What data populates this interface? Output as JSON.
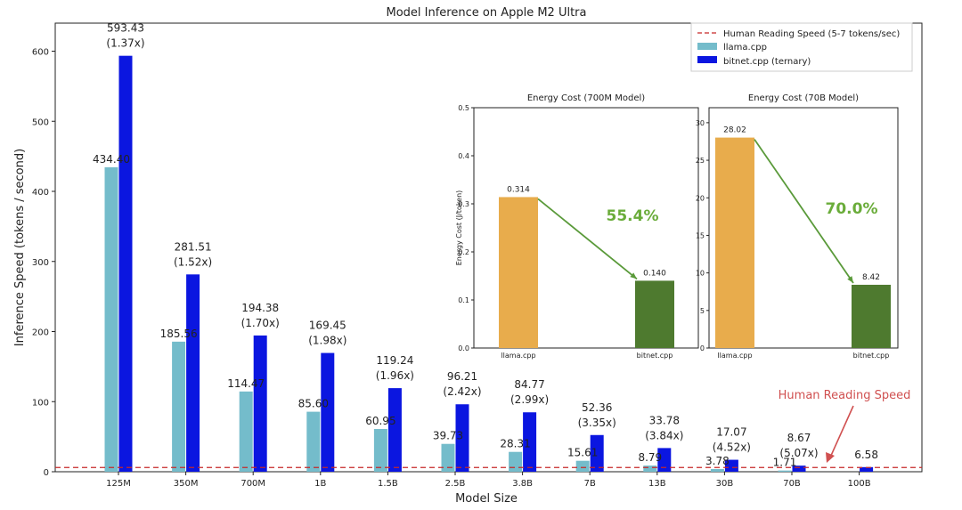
{
  "chart_data": {
    "type": "bar",
    "title": "Model Inference on Apple M2 Ultra",
    "xlabel": "Model Size",
    "ylabel": "Inference Speed (tokens / second)",
    "ylim": [
      0,
      640
    ],
    "yticks": [
      0,
      100,
      200,
      300,
      400,
      500,
      600
    ],
    "categories": [
      "125M",
      "350M",
      "700M",
      "1B",
      "1.5B",
      "2.5B",
      "3.8B",
      "7B",
      "13B",
      "30B",
      "70B",
      "100B"
    ],
    "series": [
      {
        "name": "llama.cpp",
        "color": "#74bccb",
        "values": [
          434.4,
          185.56,
          114.47,
          85.6,
          60.95,
          39.73,
          28.31,
          15.61,
          8.79,
          3.78,
          1.71,
          null
        ],
        "labels": [
          "434.40",
          "185.56",
          "114.47",
          "85.60",
          "60.95",
          "39.73",
          "28.31",
          "15.61",
          "8.79",
          "3.78",
          "1.71",
          ""
        ]
      },
      {
        "name": "bitnet.cpp (ternary)",
        "color": "#0b16e0",
        "values": [
          593.43,
          281.51,
          194.38,
          169.45,
          119.24,
          96.21,
          84.77,
          52.36,
          33.78,
          17.07,
          8.67,
          6.58
        ],
        "labels": [
          "593.43",
          "281.51",
          "194.38",
          "169.45",
          "119.24",
          "96.21",
          "84.77",
          "52.36",
          "33.78",
          "17.07",
          "8.67",
          "6.58"
        ],
        "speedups": [
          "(1.37x)",
          "(1.52x)",
          "(1.70x)",
          "(1.98x)",
          "(1.96x)",
          "(2.42x)",
          "(2.99x)",
          "(3.35x)",
          "(3.84x)",
          "(4.52x)",
          "(5.07x)",
          ""
        ]
      }
    ],
    "reference_line": {
      "name": "Human Reading Speed (5-7 tokens/sec)",
      "value": 6,
      "color": "#c62828"
    },
    "annotation": {
      "text": "Human Reading Speed",
      "color": "#d05050"
    },
    "legend": "top-right",
    "insets": [
      {
        "type": "bar",
        "title": "Energy Cost (700M Model)",
        "ylabel": "Energy Cost (J/token)",
        "ylim": [
          0,
          0.5
        ],
        "yticks": [
          "0.0",
          "0.1",
          "0.2",
          "0.3",
          "0.4",
          "0.5"
        ],
        "categories": [
          "llama.cpp",
          "bitnet.cpp"
        ],
        "values": [
          0.314,
          0.14
        ],
        "labels": [
          "0.314",
          "0.140"
        ],
        "colors": [
          "#e8ac4c",
          "#4e7a2f"
        ],
        "reduction": "55.4%"
      },
      {
        "type": "bar",
        "title": "Energy Cost (70B Model)",
        "ylabel": "",
        "ylim": [
          0,
          32
        ],
        "yticks": [
          "0",
          "5",
          "10",
          "15",
          "20",
          "25",
          "30"
        ],
        "categories": [
          "llama.cpp",
          "bitnet.cpp"
        ],
        "values": [
          28.02,
          8.42
        ],
        "labels": [
          "28.02",
          "8.42"
        ],
        "colors": [
          "#e8ac4c",
          "#4e7a2f"
        ],
        "reduction": "70.0%"
      }
    ]
  }
}
